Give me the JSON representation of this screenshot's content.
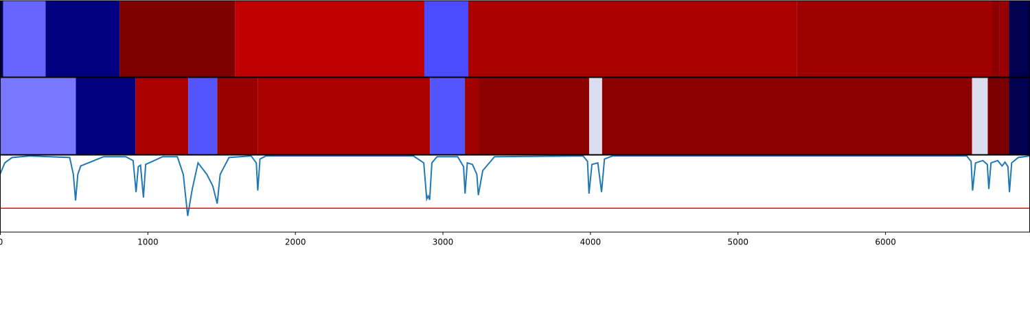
{
  "chart_data": [
    {
      "type": "segments",
      "xlim": [
        0,
        6977
      ],
      "edges": [
        0,
        19,
        307,
        809,
        1591,
        2874,
        3172,
        5400,
        6721,
        6772,
        6837,
        6977
      ],
      "colors": [
        "#00004f",
        "#6666ff",
        "#000080",
        "#800000",
        "#c00000",
        "#4b4bff",
        "#aa0000",
        "#9e0000",
        "#8e0000",
        "#990000",
        "#00004f"
      ]
    },
    {
      "type": "segments",
      "xlim": [
        0,
        6977
      ],
      "edges": [
        0,
        512,
        916,
        1274,
        1470,
        1744,
        2912,
        3149,
        3242,
        3991,
        4079,
        6586,
        6693,
        6837,
        6977
      ],
      "colors": [
        "#7777ff",
        "#000080",
        "#aa0000",
        "#5555ff",
        "#990000",
        "#aa0000",
        "#5555ff",
        "#a00000",
        "#8c0000",
        "#ddddf0",
        "#8c0000",
        "#ddddf0",
        "#7a0000",
        "#00004f"
      ]
    },
    {
      "type": "line",
      "xlim": [
        0,
        6977
      ],
      "ylim": [
        0,
        1
      ],
      "xticks": [
        0,
        1000,
        2000,
        3000,
        4000,
        5000,
        6000
      ],
      "hline": 0.31,
      "hline_color": "#ff0000",
      "series": [
        {
          "color": "#1f77b4",
          "x": [
            0,
            30,
            80,
            200,
            470,
            495,
            510,
            525,
            545,
            700,
            850,
            900,
            920,
            935,
            950,
            970,
            985,
            1100,
            1200,
            1240,
            1270,
            1300,
            1340,
            1400,
            1440,
            1470,
            1490,
            1550,
            1700,
            1735,
            1745,
            1760,
            1800,
            2800,
            2870,
            2890,
            2900,
            2910,
            2925,
            2960,
            3100,
            3140,
            3150,
            3165,
            3200,
            3230,
            3240,
            3270,
            3350,
            3950,
            3980,
            3990,
            4010,
            4050,
            4075,
            4095,
            4150,
            6550,
            6580,
            6590,
            6610,
            6660,
            6690,
            6700,
            6715,
            6760,
            6790,
            6810,
            6830,
            6840,
            6855,
            6900,
            6977
          ],
          "values": [
            0.76,
            0.9,
            0.97,
            0.99,
            0.97,
            0.75,
            0.41,
            0.75,
            0.86,
            0.98,
            0.98,
            0.93,
            0.52,
            0.85,
            0.87,
            0.45,
            0.88,
            0.98,
            0.98,
            0.75,
            0.21,
            0.55,
            0.9,
            0.75,
            0.6,
            0.37,
            0.75,
            0.97,
            0.99,
            0.9,
            0.54,
            0.95,
            0.99,
            0.99,
            0.9,
            0.43,
            0.47,
            0.42,
            0.9,
            0.98,
            0.98,
            0.85,
            0.5,
            0.9,
            0.88,
            0.75,
            0.48,
            0.8,
            0.98,
            0.99,
            0.92,
            0.5,
            0.88,
            0.9,
            0.52,
            0.95,
            0.99,
            0.99,
            0.92,
            0.54,
            0.9,
            0.93,
            0.88,
            0.56,
            0.9,
            0.93,
            0.86,
            0.91,
            0.85,
            0.52,
            0.9,
            0.97,
            0.99
          ]
        }
      ]
    }
  ]
}
